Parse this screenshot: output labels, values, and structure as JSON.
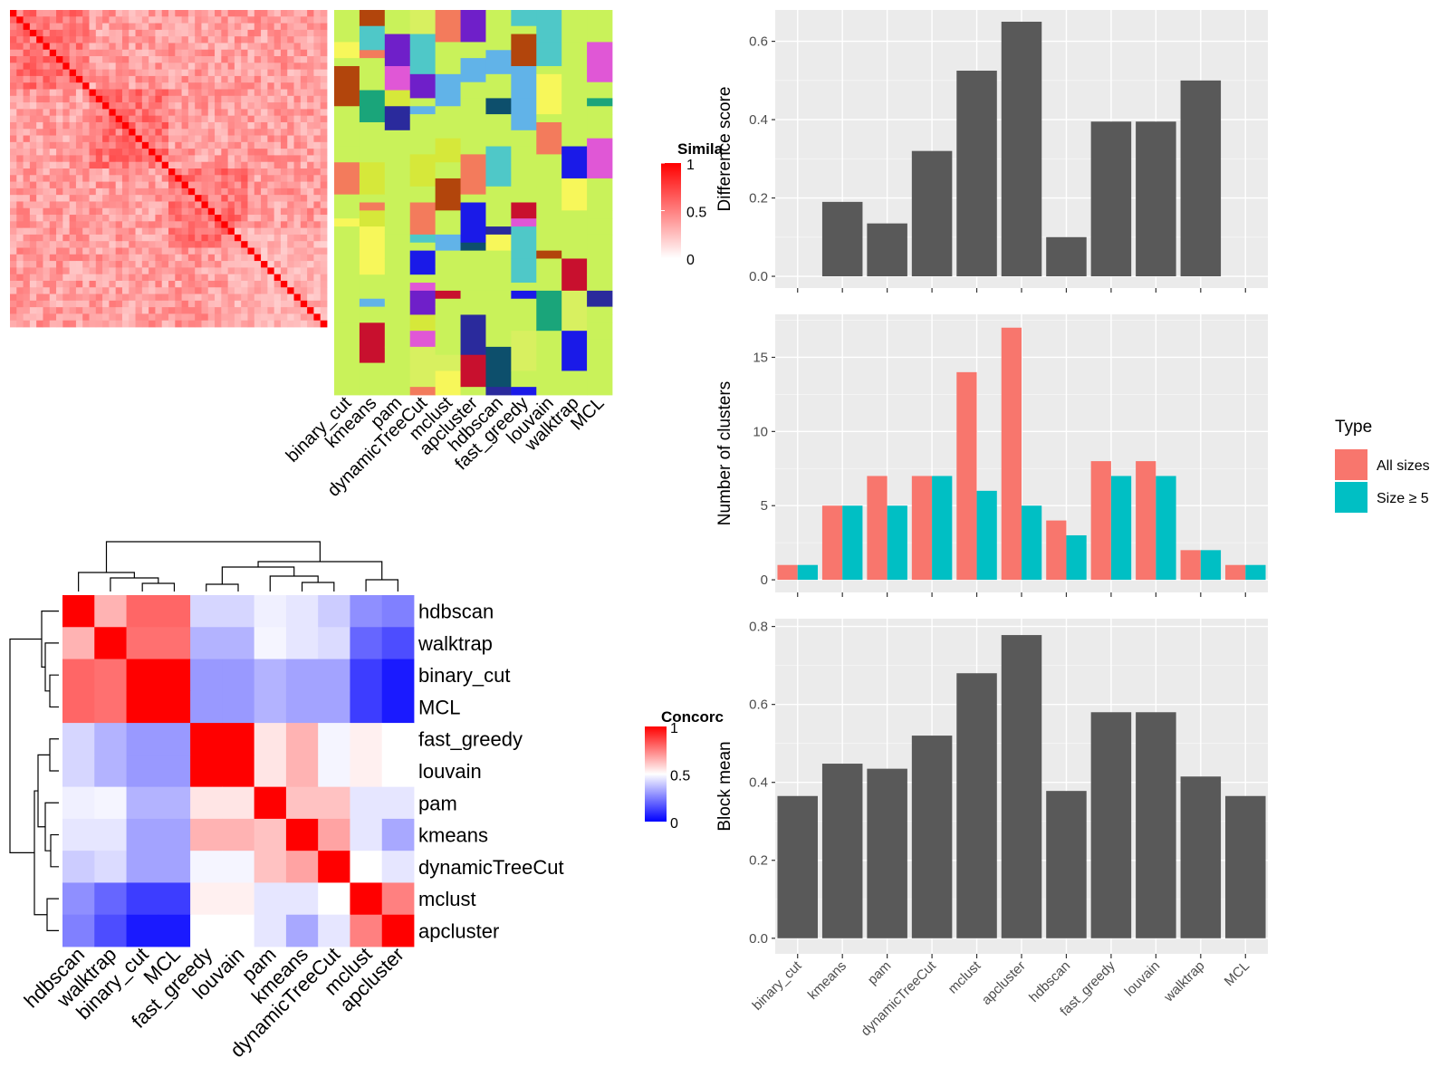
{
  "colors": {
    "panel_bg": "#ebebeb",
    "grid": "#ffffff",
    "bar": "#595959",
    "all_sizes": "#f8766d",
    "size5": "#00bfc4",
    "similarity_high": "#ff0000",
    "concordance_low": "#0000ff",
    "heatmap_bg": "#c9f25a"
  },
  "similarity_legend": {
    "title": "Simila",
    "ticks": [
      "1",
      "0.5",
      "0"
    ]
  },
  "concordance_legend": {
    "title": "Concorc",
    "ticks": [
      "1",
      "0.5",
      "0"
    ]
  },
  "type_legend": {
    "title": "Type",
    "items": [
      "All sizes",
      "Size ≥ 5"
    ]
  },
  "methods_bottom": [
    "binary_cut",
    "kmeans",
    "pam",
    "dynamicTreeCut",
    "mclust",
    "apcluster",
    "hdbscan",
    "fast_greedy",
    "louvain",
    "walktrap",
    "MCL"
  ],
  "concordance_order": [
    "hdbscan",
    "walktrap",
    "binary_cut",
    "MCL",
    "fast_greedy",
    "louvain",
    "pam",
    "kmeans",
    "dynamicTreeCut",
    "mclust",
    "apcluster"
  ],
  "chart_data": [
    {
      "type": "heatmap",
      "name": "similarity-heatmap",
      "legend_title": "Simila",
      "range": [
        0,
        1
      ]
    },
    {
      "type": "heatmap",
      "name": "cluster-assignment-heatmap",
      "columns": [
        "binary_cut",
        "kmeans",
        "pam",
        "dynamicTreeCut",
        "mclust",
        "apcluster",
        "hdbscan",
        "fast_greedy",
        "louvain",
        "walktrap",
        "MCL"
      ]
    },
    {
      "type": "heatmap",
      "name": "concordance-heatmap",
      "legend_title": "Concorc",
      "range": [
        0,
        1
      ],
      "rows": [
        "hdbscan",
        "walktrap",
        "binary_cut",
        "MCL",
        "fast_greedy",
        "louvain",
        "pam",
        "kmeans",
        "dynamicTreeCut",
        "mclust",
        "apcluster"
      ],
      "columns": [
        "hdbscan",
        "walktrap",
        "binary_cut",
        "MCL",
        "fast_greedy",
        "louvain",
        "pam",
        "kmeans",
        "dynamicTreeCut",
        "mclust",
        "apcluster"
      ],
      "values": [
        [
          1.0,
          0.65,
          0.8,
          0.8,
          0.42,
          0.42,
          0.47,
          0.45,
          0.4,
          0.28,
          0.25
        ],
        [
          0.65,
          1.0,
          0.78,
          0.78,
          0.35,
          0.35,
          0.48,
          0.45,
          0.43,
          0.2,
          0.15
        ],
        [
          0.8,
          0.78,
          1.0,
          1.0,
          0.3,
          0.3,
          0.35,
          0.32,
          0.32,
          0.12,
          0.05
        ],
        [
          0.8,
          0.78,
          1.0,
          1.0,
          0.3,
          0.3,
          0.35,
          0.32,
          0.32,
          0.12,
          0.05
        ],
        [
          0.42,
          0.35,
          0.3,
          0.3,
          1.0,
          1.0,
          0.55,
          0.65,
          0.48,
          0.53,
          0.5
        ],
        [
          0.42,
          0.35,
          0.3,
          0.3,
          1.0,
          1.0,
          0.55,
          0.65,
          0.48,
          0.53,
          0.5
        ],
        [
          0.47,
          0.48,
          0.35,
          0.35,
          0.55,
          0.55,
          1.0,
          0.62,
          0.62,
          0.45,
          0.45
        ],
        [
          0.45,
          0.45,
          0.32,
          0.32,
          0.65,
          0.65,
          0.62,
          1.0,
          0.68,
          0.45,
          0.33
        ],
        [
          0.4,
          0.43,
          0.32,
          0.32,
          0.48,
          0.48,
          0.62,
          0.68,
          1.0,
          0.5,
          0.45
        ],
        [
          0.28,
          0.2,
          0.12,
          0.12,
          0.53,
          0.53,
          0.45,
          0.45,
          0.5,
          1.0,
          0.75
        ],
        [
          0.25,
          0.15,
          0.05,
          0.05,
          0.5,
          0.5,
          0.45,
          0.33,
          0.45,
          0.75,
          1.0
        ]
      ]
    },
    {
      "type": "bar",
      "name": "difference-score",
      "categories": [
        "binary_cut",
        "kmeans",
        "pam",
        "dynamicTreeCut",
        "mclust",
        "apcluster",
        "hdbscan",
        "fast_greedy",
        "louvain",
        "walktrap",
        "MCL"
      ],
      "values": [
        0.0,
        0.19,
        0.135,
        0.32,
        0.525,
        0.65,
        0.1,
        0.395,
        0.395,
        0.5,
        0.0
      ],
      "ylabel": "Difference score",
      "ylim": [
        -0.03,
        0.68
      ],
      "yticks": [
        "0.0",
        "0.2",
        "0.4",
        "0.6"
      ],
      "grid": true
    },
    {
      "type": "bar",
      "name": "number-of-clusters",
      "categories": [
        "binary_cut",
        "kmeans",
        "pam",
        "dynamicTreeCut",
        "mclust",
        "apcluster",
        "hdbscan",
        "fast_greedy",
        "louvain",
        "walktrap",
        "MCL"
      ],
      "series": [
        {
          "name": "All sizes",
          "values": [
            1,
            5,
            7,
            7,
            14,
            17,
            4,
            8,
            8,
            2,
            1
          ]
        },
        {
          "name": "Size ≥ 5",
          "values": [
            1,
            5,
            5,
            7,
            6,
            5,
            3,
            7,
            7,
            2,
            1
          ]
        }
      ],
      "ylabel": "Number of clusters",
      "ylim": [
        -0.85,
        17.9
      ],
      "yticks": [
        "0",
        "5",
        "10",
        "15"
      ],
      "legend": "right",
      "legend_title": "Type",
      "grid": true
    },
    {
      "type": "bar",
      "name": "block-mean",
      "categories": [
        "binary_cut",
        "kmeans",
        "pam",
        "dynamicTreeCut",
        "mclust",
        "apcluster",
        "hdbscan",
        "fast_greedy",
        "louvain",
        "walktrap",
        "MCL"
      ],
      "values": [
        0.365,
        0.448,
        0.435,
        0.52,
        0.68,
        0.778,
        0.378,
        0.58,
        0.58,
        0.415,
        0.365
      ],
      "ylabel": "Block mean",
      "ylim": [
        -0.04,
        0.82
      ],
      "yticks": [
        "0.0",
        "0.2",
        "0.4",
        "0.6",
        "0.8"
      ],
      "grid": true
    }
  ]
}
